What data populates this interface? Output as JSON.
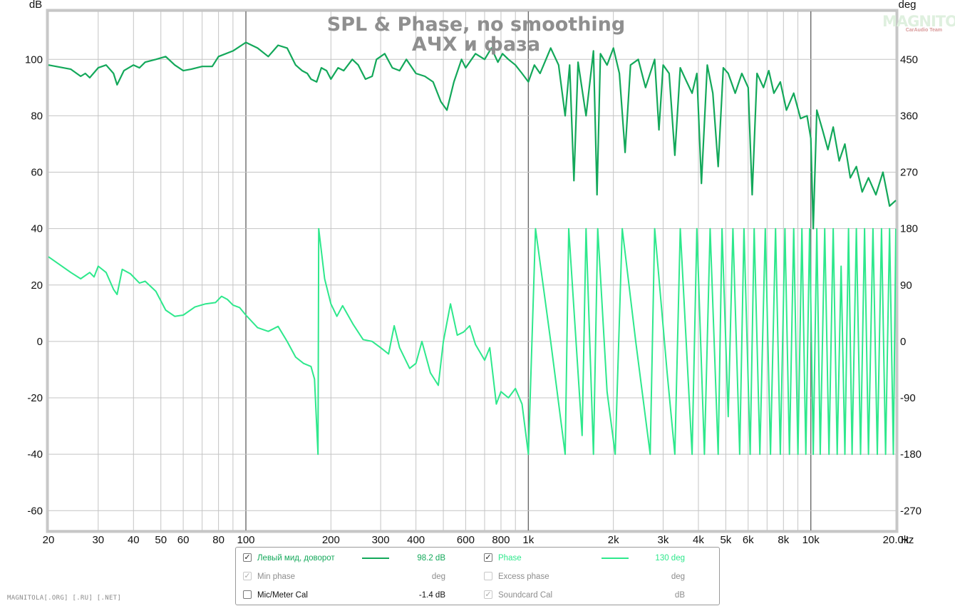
{
  "chart_data": {
    "type": "line",
    "title": "SPL & Phase, no smoothing",
    "subtitle": "АЧХ и фаза",
    "ylabel": "dB",
    "y2label": "deg",
    "xunit": "Hz",
    "x_scale": "log",
    "xlim": [
      20,
      20000
    ],
    "ylim": [
      -67,
      117
    ],
    "y2lim": [
      -301.5,
      526.5
    ],
    "grid": true,
    "legend_position": "bottom",
    "x_ticks": [
      {
        "v": 20,
        "label": "20"
      },
      {
        "v": 30,
        "label": "30"
      },
      {
        "v": 40,
        "label": "40"
      },
      {
        "v": 50,
        "label": "50"
      },
      {
        "v": 60,
        "label": "60"
      },
      {
        "v": 80,
        "label": "80"
      },
      {
        "v": 100,
        "label": "100"
      },
      {
        "v": 200,
        "label": "200"
      },
      {
        "v": 300,
        "label": "300"
      },
      {
        "v": 400,
        "label": "400"
      },
      {
        "v": 600,
        "label": "600"
      },
      {
        "v": 800,
        "label": "800"
      },
      {
        "v": 1000,
        "label": "1k"
      },
      {
        "v": 2000,
        "label": "2k"
      },
      {
        "v": 3000,
        "label": "3k"
      },
      {
        "v": 4000,
        "label": "4k"
      },
      {
        "v": 5000,
        "label": "5k"
      },
      {
        "v": 6000,
        "label": "6k"
      },
      {
        "v": 8000,
        "label": "8k"
      },
      {
        "v": 10000,
        "label": "10k"
      },
      {
        "v": 20000,
        "label": "20.0k"
      }
    ],
    "x_minor": [
      70,
      90,
      500,
      700,
      900,
      7000,
      9000
    ],
    "y_ticks": [
      {
        "v": 100,
        "label": "100"
      },
      {
        "v": 80,
        "label": "80"
      },
      {
        "v": 60,
        "label": "60"
      },
      {
        "v": 40,
        "label": "40"
      },
      {
        "v": 20,
        "label": "20"
      },
      {
        "v": 0,
        "label": "0"
      },
      {
        "v": -20,
        "label": "-20"
      },
      {
        "v": -40,
        "label": "-40"
      },
      {
        "v": -60,
        "label": "-60"
      }
    ],
    "y2_ticks": [
      {
        "v": 450,
        "label": "450"
      },
      {
        "v": 360,
        "label": "360"
      },
      {
        "v": 270,
        "label": "270"
      },
      {
        "v": 180,
        "label": "180"
      },
      {
        "v": 90,
        "label": "90"
      },
      {
        "v": 0,
        "label": "0"
      },
      {
        "v": -90,
        "label": "-90"
      },
      {
        "v": -180,
        "label": "-180"
      },
      {
        "v": -270,
        "label": "-270"
      }
    ],
    "series": [
      {
        "name": "Левый мид, доворот",
        "unit": "dB",
        "axis": "left",
        "color": "#13a85a",
        "points": [
          [
            20,
            98
          ],
          [
            24,
            96.5
          ],
          [
            26,
            94
          ],
          [
            27,
            95
          ],
          [
            28,
            93.5
          ],
          [
            30,
            97
          ],
          [
            32,
            98
          ],
          [
            34,
            95
          ],
          [
            35,
            91
          ],
          [
            37,
            96
          ],
          [
            40,
            98
          ],
          [
            42,
            97
          ],
          [
            44,
            99
          ],
          [
            48,
            100
          ],
          [
            52,
            101
          ],
          [
            56,
            98
          ],
          [
            60,
            96
          ],
          [
            64,
            96.5
          ],
          [
            70,
            97.5
          ],
          [
            76,
            97.5
          ],
          [
            80,
            101
          ],
          [
            90,
            103
          ],
          [
            100,
            106
          ],
          [
            110,
            104
          ],
          [
            120,
            101
          ],
          [
            130,
            105
          ],
          [
            140,
            104
          ],
          [
            150,
            98
          ],
          [
            158,
            96
          ],
          [
            165,
            95
          ],
          [
            170,
            93
          ],
          [
            178,
            92
          ],
          [
            185,
            97
          ],
          [
            193,
            96
          ],
          [
            200,
            93
          ],
          [
            212,
            97
          ],
          [
            222,
            96
          ],
          [
            238,
            100
          ],
          [
            250,
            98
          ],
          [
            265,
            93
          ],
          [
            280,
            94
          ],
          [
            290,
            100
          ],
          [
            310,
            102
          ],
          [
            330,
            97
          ],
          [
            350,
            96
          ],
          [
            370,
            100
          ],
          [
            400,
            95
          ],
          [
            430,
            94
          ],
          [
            460,
            92
          ],
          [
            490,
            85
          ],
          [
            515,
            82
          ],
          [
            545,
            92
          ],
          [
            580,
            100
          ],
          [
            600,
            97
          ],
          [
            650,
            102
          ],
          [
            700,
            100
          ],
          [
            740,
            104
          ],
          [
            780,
            99
          ],
          [
            810,
            102
          ],
          [
            850,
            100
          ],
          [
            900,
            98
          ],
          [
            950,
            95
          ],
          [
            1000,
            92
          ],
          [
            1050,
            98
          ],
          [
            1100,
            95
          ],
          [
            1200,
            104
          ],
          [
            1280,
            98
          ],
          [
            1350,
            80
          ],
          [
            1400,
            98
          ],
          [
            1450,
            57
          ],
          [
            1500,
            99
          ],
          [
            1600,
            80
          ],
          [
            1700,
            103
          ],
          [
            1750,
            52
          ],
          [
            1800,
            102
          ],
          [
            1900,
            98
          ],
          [
            2000,
            104
          ],
          [
            2100,
            95
          ],
          [
            2200,
            67
          ],
          [
            2300,
            98
          ],
          [
            2450,
            100
          ],
          [
            2600,
            90
          ],
          [
            2800,
            100
          ],
          [
            2900,
            75
          ],
          [
            3000,
            98
          ],
          [
            3150,
            95
          ],
          [
            3300,
            66
          ],
          [
            3450,
            97
          ],
          [
            3600,
            93
          ],
          [
            3800,
            88
          ],
          [
            3950,
            95
          ],
          [
            4100,
            56
          ],
          [
            4300,
            98
          ],
          [
            4500,
            88
          ],
          [
            4700,
            62
          ],
          [
            4900,
            97
          ],
          [
            5100,
            95
          ],
          [
            5400,
            88
          ],
          [
            5700,
            95
          ],
          [
            6000,
            90
          ],
          [
            6200,
            52
          ],
          [
            6450,
            95
          ],
          [
            6800,
            90
          ],
          [
            7100,
            96
          ],
          [
            7400,
            88
          ],
          [
            7800,
            92
          ],
          [
            8200,
            82
          ],
          [
            8700,
            88
          ],
          [
            9200,
            79
          ],
          [
            9700,
            80
          ],
          [
            10000,
            72
          ],
          [
            10200,
            40
          ],
          [
            10500,
            82
          ],
          [
            11000,
            75
          ],
          [
            11500,
            68
          ],
          [
            12000,
            76
          ],
          [
            12600,
            64
          ],
          [
            13200,
            70
          ],
          [
            13800,
            58
          ],
          [
            14500,
            62
          ],
          [
            15200,
            53
          ],
          [
            16000,
            58
          ],
          [
            17000,
            52
          ],
          [
            18000,
            60
          ],
          [
            19000,
            48
          ],
          [
            20000,
            50
          ]
        ]
      },
      {
        "name": "Phase",
        "unit": "deg",
        "axis": "right",
        "color": "#2ee88c",
        "points": [
          [
            20,
            135
          ],
          [
            24,
            110
          ],
          [
            26,
            100
          ],
          [
            28,
            110
          ],
          [
            29,
            103
          ],
          [
            30,
            120
          ],
          [
            32,
            110
          ],
          [
            34,
            83
          ],
          [
            35,
            75
          ],
          [
            36.5,
            115
          ],
          [
            39,
            108
          ],
          [
            42,
            93
          ],
          [
            44,
            96
          ],
          [
            48,
            80
          ],
          [
            52,
            50
          ],
          [
            56,
            40
          ],
          [
            60,
            42
          ],
          [
            66,
            55
          ],
          [
            72,
            60
          ],
          [
            78,
            62
          ],
          [
            82,
            72
          ],
          [
            86,
            67
          ],
          [
            90,
            58
          ],
          [
            95,
            54
          ],
          [
            100,
            42
          ],
          [
            110,
            22
          ],
          [
            120,
            16
          ],
          [
            130,
            24
          ],
          [
            140,
            0
          ],
          [
            150,
            -25
          ],
          [
            160,
            -35
          ],
          [
            170,
            -40
          ],
          [
            175,
            -60
          ],
          [
            180,
            -180
          ],
          [
            181,
            180
          ],
          [
            190,
            100
          ],
          [
            200,
            60
          ],
          [
            210,
            40
          ],
          [
            220,
            57
          ],
          [
            240,
            27
          ],
          [
            260,
            3
          ],
          [
            280,
            0
          ],
          [
            300,
            -10
          ],
          [
            320,
            -20
          ],
          [
            335,
            25
          ],
          [
            350,
            -10
          ],
          [
            380,
            -43
          ],
          [
            400,
            -35
          ],
          [
            420,
            0
          ],
          [
            450,
            -50
          ],
          [
            480,
            -70
          ],
          [
            500,
            0
          ],
          [
            530,
            60
          ],
          [
            560,
            10
          ],
          [
            590,
            15
          ],
          [
            620,
            25
          ],
          [
            650,
            -5
          ],
          [
            700,
            -30
          ],
          [
            730,
            -10
          ],
          [
            770,
            -100
          ],
          [
            800,
            -80
          ],
          [
            850,
            -90
          ],
          [
            900,
            -75
          ],
          [
            950,
            -100
          ],
          [
            1000,
            -180
          ],
          [
            1060,
            180
          ],
          [
            1200,
            0
          ],
          [
            1350,
            -180
          ],
          [
            1390,
            180
          ],
          [
            1550,
            -150
          ],
          [
            1600,
            180
          ],
          [
            1700,
            -180
          ],
          [
            1760,
            180
          ],
          [
            1900,
            -80
          ],
          [
            2030,
            -180
          ],
          [
            2150,
            180
          ],
          [
            2400,
            0
          ],
          [
            2700,
            -180
          ],
          [
            2800,
            180
          ],
          [
            3100,
            -50
          ],
          [
            3300,
            -180
          ],
          [
            3450,
            180
          ],
          [
            3800,
            -180
          ],
          [
            3950,
            180
          ],
          [
            4200,
            -180
          ],
          [
            4400,
            180
          ],
          [
            4700,
            -180
          ],
          [
            4850,
            180
          ],
          [
            5100,
            -120
          ],
          [
            5300,
            180
          ],
          [
            5600,
            -180
          ],
          [
            5800,
            180
          ],
          [
            6100,
            -180
          ],
          [
            6300,
            180
          ],
          [
            6600,
            -180
          ],
          [
            6900,
            180
          ],
          [
            7200,
            -180
          ],
          [
            7500,
            180
          ],
          [
            7800,
            -180
          ],
          [
            8100,
            180
          ],
          [
            8400,
            -180
          ],
          [
            8700,
            180
          ],
          [
            9000,
            -180
          ],
          [
            9300,
            180
          ],
          [
            9600,
            -180
          ],
          [
            9900,
            180
          ],
          [
            10200,
            -180
          ],
          [
            10500,
            180
          ],
          [
            10800,
            -180
          ],
          [
            11200,
            180
          ],
          [
            11600,
            -180
          ],
          [
            12000,
            180
          ],
          [
            12400,
            -180
          ],
          [
            12800,
            120
          ],
          [
            13200,
            -180
          ],
          [
            13600,
            180
          ],
          [
            14000,
            -180
          ],
          [
            14500,
            180
          ],
          [
            15000,
            -180
          ],
          [
            15500,
            180
          ],
          [
            16000,
            -180
          ],
          [
            16600,
            180
          ],
          [
            17200,
            -180
          ],
          [
            17800,
            180
          ],
          [
            18400,
            -180
          ],
          [
            19000,
            180
          ],
          [
            19600,
            -180
          ],
          [
            20000,
            180
          ]
        ]
      }
    ]
  },
  "legend": {
    "rows": [
      {
        "left": {
          "label": "Левый мид, доворот",
          "value": "98.2 dB",
          "checked": true,
          "color": "#13a85a",
          "state": "active"
        },
        "right": {
          "label": "Phase",
          "value": "130 deg",
          "checked": true,
          "color": "#2ee88c",
          "state": "active"
        }
      },
      {
        "left": {
          "label": "Min phase",
          "value": "deg",
          "checked": true,
          "color": "",
          "state": "disabled"
        },
        "right": {
          "label": "Excess phase",
          "value": "deg",
          "checked": false,
          "color": "",
          "state": "disabled"
        }
      },
      {
        "left": {
          "label": "Mic/Meter Cal",
          "value": "-1.4 dB",
          "checked": false,
          "color": "",
          "state": "normal"
        },
        "right": {
          "label": "Soundcard Cal",
          "value": "dB",
          "checked": true,
          "color": "",
          "state": "disabled"
        }
      }
    ]
  },
  "watermark": "MAGNITOLA[.ORG] [.RU] [.NET]",
  "logo": {
    "text": "MAGNITOLA",
    "sub": "CarAudio Team"
  },
  "check_glyph": "✓"
}
